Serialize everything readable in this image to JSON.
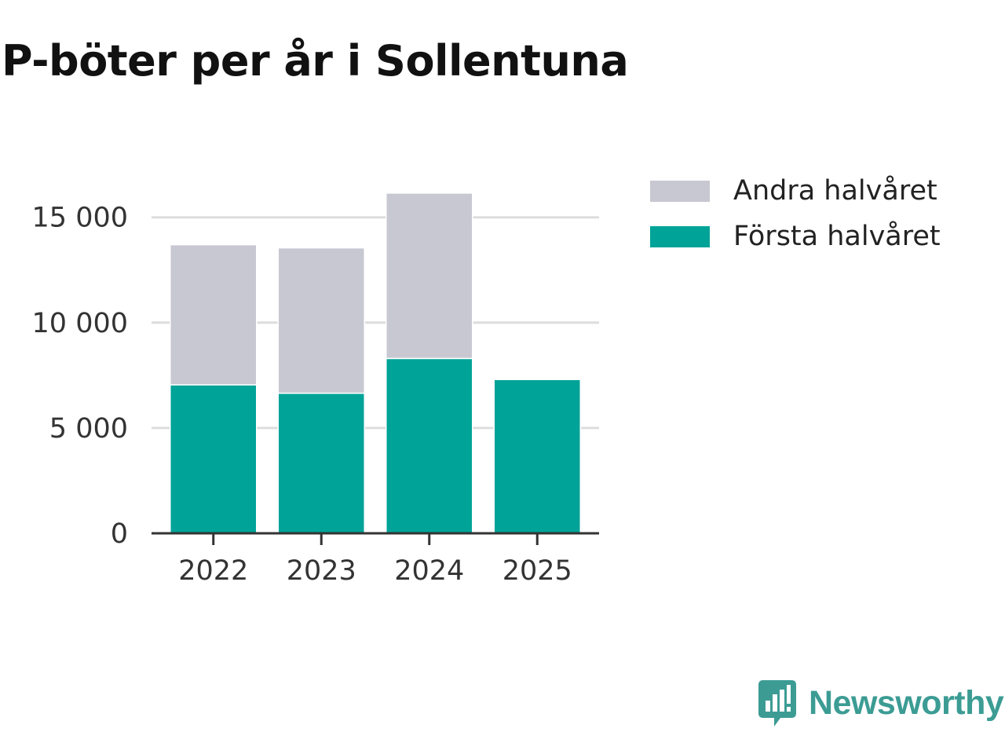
{
  "chart_data": {
    "type": "bar",
    "stacked": true,
    "title": "P-böter per år i Sollentuna",
    "categories": [
      "2022",
      "2023",
      "2024",
      "2025"
    ],
    "series": [
      {
        "name": "Första halvåret",
        "color": "#00a398",
        "values": [
          7050,
          6650,
          8300,
          7300
        ]
      },
      {
        "name": "Andra halvåret",
        "color": "#c8c8d2",
        "values": [
          6650,
          6900,
          7850,
          null
        ]
      }
    ],
    "y_ticks": [
      0,
      5000,
      10000,
      15000
    ],
    "y_tick_labels": [
      "0",
      "5 000",
      "10 000",
      "15 000"
    ],
    "ylim": [
      0,
      16500
    ],
    "xlabel": "",
    "ylabel": "",
    "grid": true,
    "legend": {
      "position": "top-right",
      "order": [
        "Andra halvåret",
        "Första halvåret"
      ]
    }
  },
  "brand": {
    "name": "Newsworthy",
    "color": "#3c9c94",
    "icon": "newsworthy-logo-icon"
  }
}
